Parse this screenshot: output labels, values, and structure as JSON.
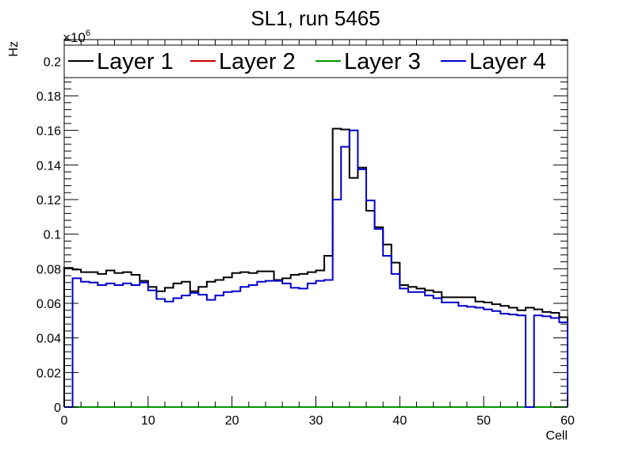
{
  "chart_data": {
    "type": "line",
    "title": "SL1, run 5465",
    "xlabel": "Cell",
    "ylabel": "Hz",
    "y_multiplier": "×10",
    "y_exponent": "6",
    "xlim": [
      0,
      60
    ],
    "ylim": [
      0,
      0.2125
    ],
    "x_ticks": [
      0,
      10,
      20,
      30,
      40,
      50,
      60
    ],
    "y_ticks": [
      0,
      0.02,
      0.04,
      0.06,
      0.08,
      0.1,
      0.12,
      0.14,
      0.16,
      0.18,
      0.2
    ],
    "grid": false,
    "legend_position": "top",
    "bin_edges_start": 0,
    "bin_width": 1,
    "series": [
      {
        "name": "Layer 1",
        "color": "#000000",
        "values": [
          0.0805,
          0.0795,
          0.078,
          0.078,
          0.077,
          0.079,
          0.0775,
          0.078,
          0.0765,
          0.073,
          0.0695,
          0.067,
          0.069,
          0.0715,
          0.0725,
          0.067,
          0.0695,
          0.0725,
          0.0735,
          0.075,
          0.0775,
          0.078,
          0.0775,
          0.0785,
          0.0785,
          0.0735,
          0.0745,
          0.0765,
          0.077,
          0.078,
          0.079,
          0.0875,
          0.161,
          0.1605,
          0.1325,
          0.1385,
          0.1135,
          0.104,
          0.094,
          0.0835,
          0.0705,
          0.0695,
          0.0685,
          0.0675,
          0.0665,
          0.0635,
          0.0635,
          0.0635,
          0.0635,
          0.061,
          0.0605,
          0.0595,
          0.0585,
          0.0575,
          0.056,
          0.0575,
          0.0565,
          0.055,
          0.0545,
          0.052
        ]
      },
      {
        "name": "Layer 2",
        "color": "#cc0000",
        "values": [
          0,
          0,
          0,
          0,
          0,
          0,
          0,
          0,
          0,
          0,
          0,
          0,
          0,
          0,
          0,
          0,
          0,
          0,
          0,
          0,
          0,
          0,
          0,
          0,
          0,
          0,
          0,
          0,
          0,
          0,
          0,
          0,
          0,
          0,
          0,
          0,
          0,
          0,
          0,
          0,
          0,
          0,
          0,
          0,
          0,
          0,
          0,
          0,
          0,
          0,
          0,
          0,
          0,
          0,
          0,
          0,
          0,
          0,
          0,
          0
        ]
      },
      {
        "name": "Layer 3",
        "color": "#009900",
        "values": [
          0,
          0,
          0,
          0,
          0,
          0,
          0,
          0,
          0,
          0,
          0,
          0,
          0,
          0,
          0,
          0,
          0,
          0,
          0,
          0,
          0,
          0,
          0,
          0,
          0,
          0,
          0,
          0,
          0,
          0,
          0,
          0,
          0,
          0,
          0,
          0,
          0,
          0,
          0,
          0,
          0,
          0,
          0,
          0,
          0,
          0,
          0,
          0,
          0,
          0,
          0,
          0,
          0,
          0,
          0,
          0,
          0,
          0,
          0,
          0
        ]
      },
      {
        "name": "Layer 4",
        "color": "#0000cc",
        "values": [
          0,
          0.0745,
          0.0725,
          0.072,
          0.0705,
          0.0715,
          0.0705,
          0.0715,
          0.0705,
          0.072,
          0.0675,
          0.0625,
          0.061,
          0.063,
          0.0645,
          0.066,
          0.065,
          0.062,
          0.0645,
          0.0665,
          0.067,
          0.0695,
          0.0705,
          0.0725,
          0.073,
          0.073,
          0.0715,
          0.069,
          0.0685,
          0.0715,
          0.073,
          0.0735,
          0.12,
          0.1505,
          0.16,
          0.1375,
          0.1195,
          0.103,
          0.0875,
          0.077,
          0.0685,
          0.0665,
          0.0665,
          0.0645,
          0.063,
          0.0605,
          0.0605,
          0.0585,
          0.058,
          0.0575,
          0.0565,
          0.0555,
          0.054,
          0.0535,
          0.053,
          0,
          0.053,
          0.0525,
          0.0515,
          0.049
        ]
      }
    ]
  }
}
